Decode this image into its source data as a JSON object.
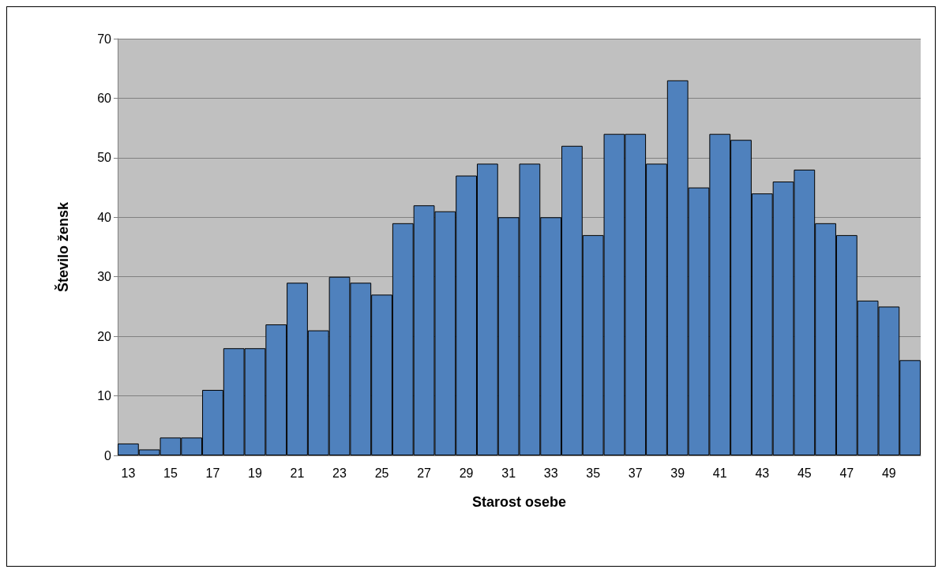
{
  "chart_data": {
    "type": "bar",
    "xlabel": "Starost osebe",
    "ylabel": "Število žensk",
    "categories": [
      "13",
      null,
      "15",
      null,
      "17",
      null,
      "19",
      null,
      "21",
      null,
      "23",
      null,
      "25",
      null,
      "27",
      null,
      "29",
      null,
      "31",
      null,
      "33",
      null,
      "35",
      null,
      "37",
      null,
      "39",
      null,
      "41",
      null,
      "43",
      null,
      "45",
      null,
      "47",
      null,
      "49",
      null
    ],
    "values": [
      2,
      1,
      3,
      3,
      11,
      18,
      18,
      22,
      29,
      21,
      30,
      29,
      27,
      39,
      42,
      41,
      47,
      49,
      40,
      49,
      40,
      52,
      37,
      54,
      54,
      49,
      63,
      45,
      54,
      53,
      44,
      46,
      48,
      39,
      37,
      26,
      25,
      16
    ],
    "color": "#4f81bd",
    "ylim": [
      0,
      70
    ],
    "yticks": [
      0,
      10,
      20,
      30,
      40,
      50,
      60,
      70
    ],
    "grid": "y"
  }
}
